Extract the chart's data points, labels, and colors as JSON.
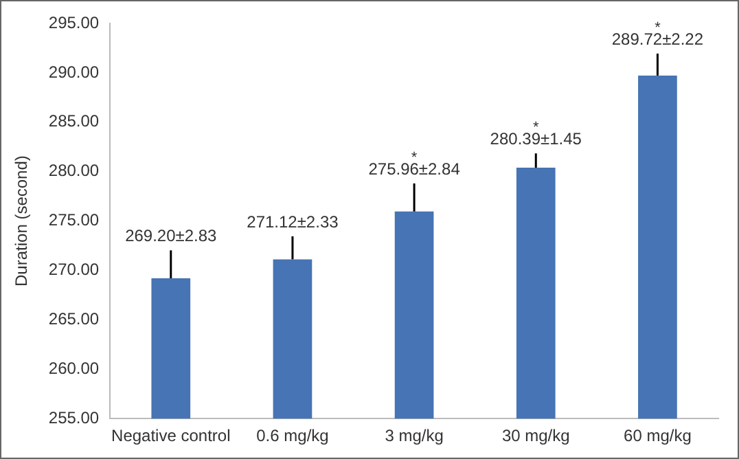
{
  "chart_data": {
    "type": "bar",
    "ylabel": "Duration (second)",
    "categories": [
      "Negative control",
      "0.6 mg/kg",
      "3 mg/kg",
      "30 mg/kg",
      "60 mg/kg"
    ],
    "values": [
      269.2,
      271.12,
      275.96,
      280.39,
      289.72
    ],
    "errors": [
      [
        269.2,
        272.03
      ],
      [
        271.12,
        273.45
      ],
      [
        275.96,
        278.8
      ],
      [
        280.39,
        281.84
      ],
      [
        289.72,
        291.94
      ]
    ],
    "value_labels": [
      "269.20±2.83",
      "271.12±2.33",
      "275.96±2.84",
      "280.39±1.45",
      "289.72±2.22"
    ],
    "color": "#4674b4",
    "ylim": [
      255,
      295
    ],
    "yticks": [
      {
        "value": 255,
        "label": "255.00"
      },
      {
        "value": 260,
        "label": "260.00"
      },
      {
        "value": 265,
        "label": "265.00"
      },
      {
        "value": 270,
        "label": "270.00"
      },
      {
        "value": 275,
        "label": "275.00"
      },
      {
        "value": 280,
        "label": "280.00"
      },
      {
        "value": 285,
        "label": "285.00"
      },
      {
        "value": 290,
        "label": "290.00"
      },
      {
        "value": 295,
        "label": "295.00"
      }
    ],
    "grid": false,
    "legend": false,
    "annotations": [
      "*",
      "*",
      "*"
    ]
  }
}
